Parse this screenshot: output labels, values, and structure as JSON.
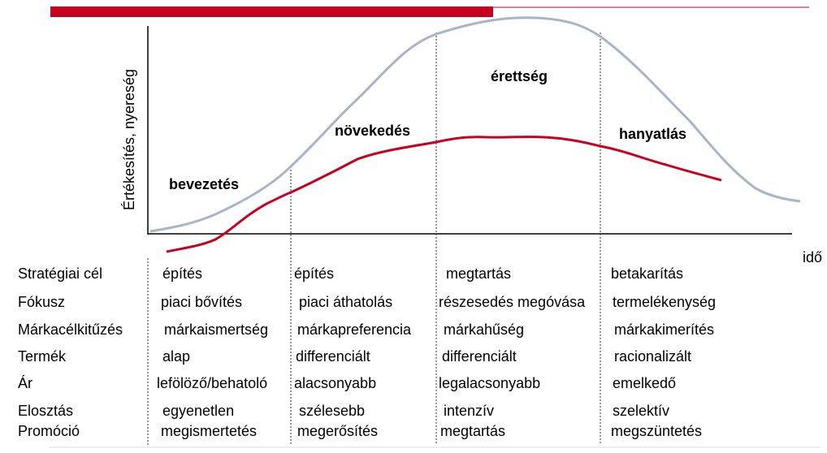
{
  "y_axis_label": "Értékesítés, nyereség",
  "x_axis_label": "idő",
  "stages": [
    "bevezetés",
    "növekedés",
    "érettség",
    "hanyatlás"
  ],
  "rows": [
    {
      "label": "Stratégiai cél",
      "cells": [
        "építés",
        "építés",
        "megtartás",
        "betakarítás"
      ]
    },
    {
      "label": "Fókusz",
      "cells": [
        "piaci bővítés",
        "piaci áthatolás",
        "részesedés megóvása",
        "termelékenység"
      ]
    },
    {
      "label": "Márkacélkitűzés",
      "cells": [
        "márkaismertség",
        "márkapreferencia",
        "márkahűség",
        "márkakimerítés"
      ]
    },
    {
      "label": "Termék",
      "cells": [
        "alap",
        "differenciált",
        "differenciált",
        "racionalizált"
      ]
    },
    {
      "label": "Ár",
      "cells": [
        "lefölöző/behatoló",
        "alacsonyabb",
        "legalacsonyabb",
        "emelkedő"
      ]
    },
    {
      "label": "Elosztás",
      "cells": [
        "egyenetlen",
        "szélesebb",
        "intenzív",
        "szelektív"
      ]
    },
    {
      "label": "Promóció",
      "cells": [
        "megismertetés",
        "megerősítés",
        "megtartás",
        "megszüntetés"
      ]
    }
  ]
}
